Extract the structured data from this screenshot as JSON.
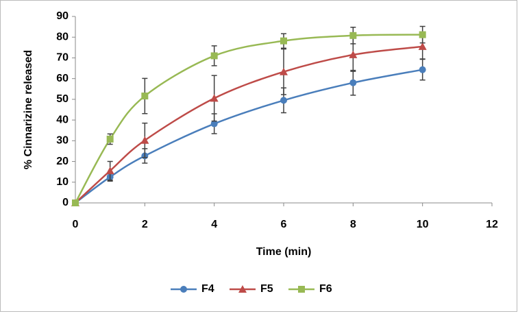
{
  "chart_data": {
    "type": "line",
    "x_label": "Time (min)",
    "y_label": "% Cinnarizine released",
    "x": [
      0,
      1,
      2,
      4,
      6,
      8,
      10
    ],
    "series": [
      {
        "name": "F4",
        "color": "#4a7ebb",
        "marker": "circle",
        "values": [
          0,
          12.5,
          22.7,
          38.2,
          49.5,
          58.0,
          64.3
        ],
        "errors": [
          0,
          2,
          3.5,
          4.8,
          6,
          6,
          5
        ]
      },
      {
        "name": "F5",
        "color": "#be4b48",
        "marker": "triangle",
        "values": [
          0,
          15.5,
          30.2,
          50.5,
          63.3,
          71.5,
          75.5
        ],
        "errors": [
          0,
          4.5,
          8.3,
          11,
          11,
          8,
          6
        ]
      },
      {
        "name": "F6",
        "color": "#98b954",
        "marker": "square",
        "values": [
          0,
          30.8,
          51.6,
          71.0,
          78.2,
          80.8,
          81.2
        ],
        "errors": [
          0,
          2.5,
          8.5,
          4.8,
          3.5,
          4,
          4
        ]
      }
    ],
    "xlim": [
      0,
      12
    ],
    "xticks": [
      0,
      2,
      4,
      6,
      8,
      10,
      12
    ],
    "ylim": [
      0,
      90
    ],
    "yticks": [
      0,
      10,
      20,
      30,
      40,
      50,
      60,
      70,
      80,
      90
    ],
    "smooth": true,
    "error_bar_color": "#404040",
    "legend": "bottom"
  }
}
